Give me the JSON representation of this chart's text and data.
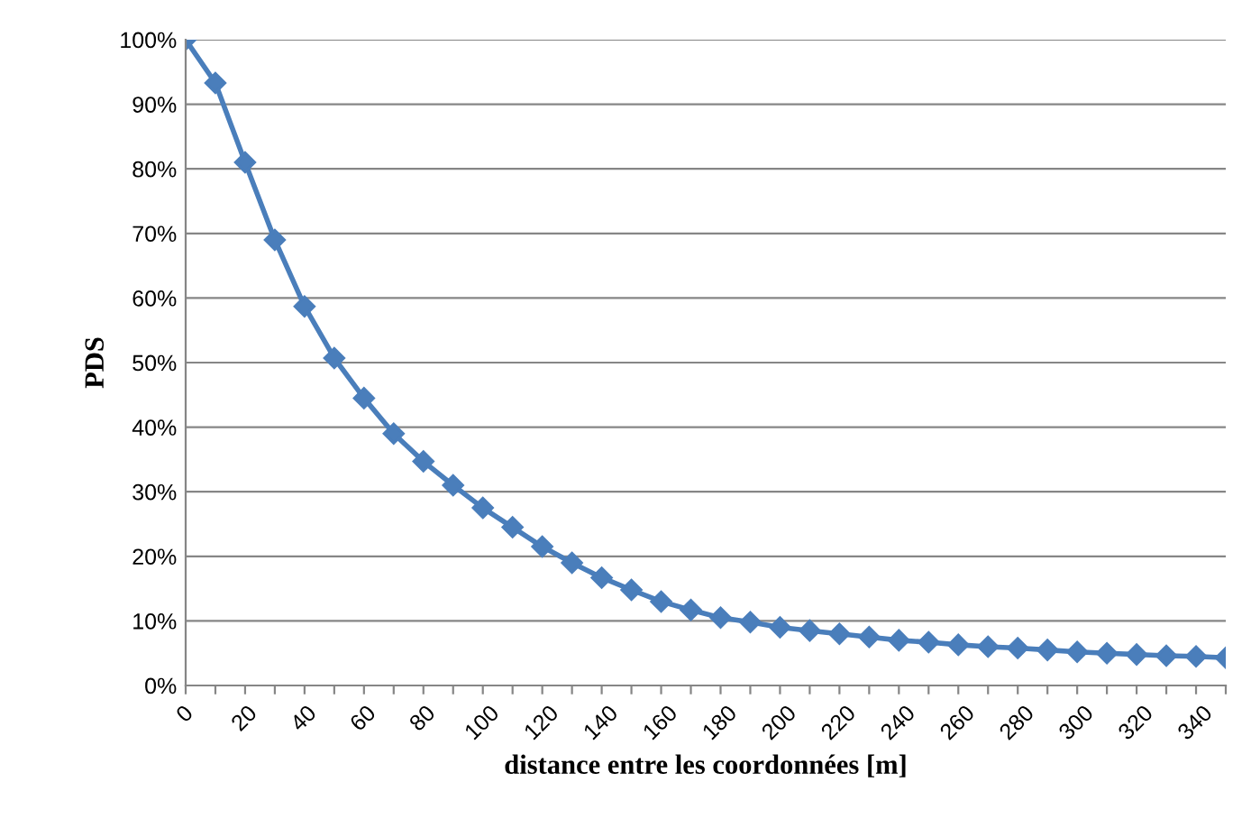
{
  "chart_data": {
    "type": "line",
    "xlabel": "distance entre les coordonnées [m]",
    "ylabel": "PDS",
    "categories": [
      "0",
      null,
      "20",
      null,
      "40",
      null,
      "60",
      null,
      "80",
      null,
      "100",
      null,
      "120",
      null,
      "140",
      null,
      "160",
      null,
      "180",
      null,
      "200",
      null,
      "220",
      null,
      "240",
      null,
      "260",
      null,
      "280",
      null,
      "300",
      null,
      "320",
      null,
      "340",
      null
    ],
    "series": [
      {
        "color": "#4a7ebb",
        "values": [
          100,
          93.3,
          81,
          69,
          58.7,
          50.7,
          44.5,
          39,
          34.7,
          31,
          27.5,
          24.5,
          21.5,
          19,
          16.7,
          14.8,
          13,
          11.7,
          10.5,
          9.8,
          9,
          8.5,
          8,
          7.5,
          7,
          6.7,
          6.3,
          6,
          5.8,
          5.5,
          5.2,
          5,
          4.8,
          4.6,
          4.5,
          4.3
        ]
      }
    ],
    "ylim": [
      0,
      100
    ],
    "yticks": [
      {
        "value": 0,
        "label": "0%"
      },
      {
        "value": 10,
        "label": "10%"
      },
      {
        "value": 20,
        "label": "20%"
      },
      {
        "value": 30,
        "label": "30%"
      },
      {
        "value": 40,
        "label": "40%"
      },
      {
        "value": 50,
        "label": "50%"
      },
      {
        "value": 60,
        "label": "60%"
      },
      {
        "value": 70,
        "label": "70%"
      },
      {
        "value": 80,
        "label": "80%"
      },
      {
        "value": 90,
        "label": "90%"
      },
      {
        "value": 100,
        "label": "100%"
      }
    ],
    "grid": "y",
    "legend": false,
    "marker": "diamond",
    "line_style": "solid"
  }
}
